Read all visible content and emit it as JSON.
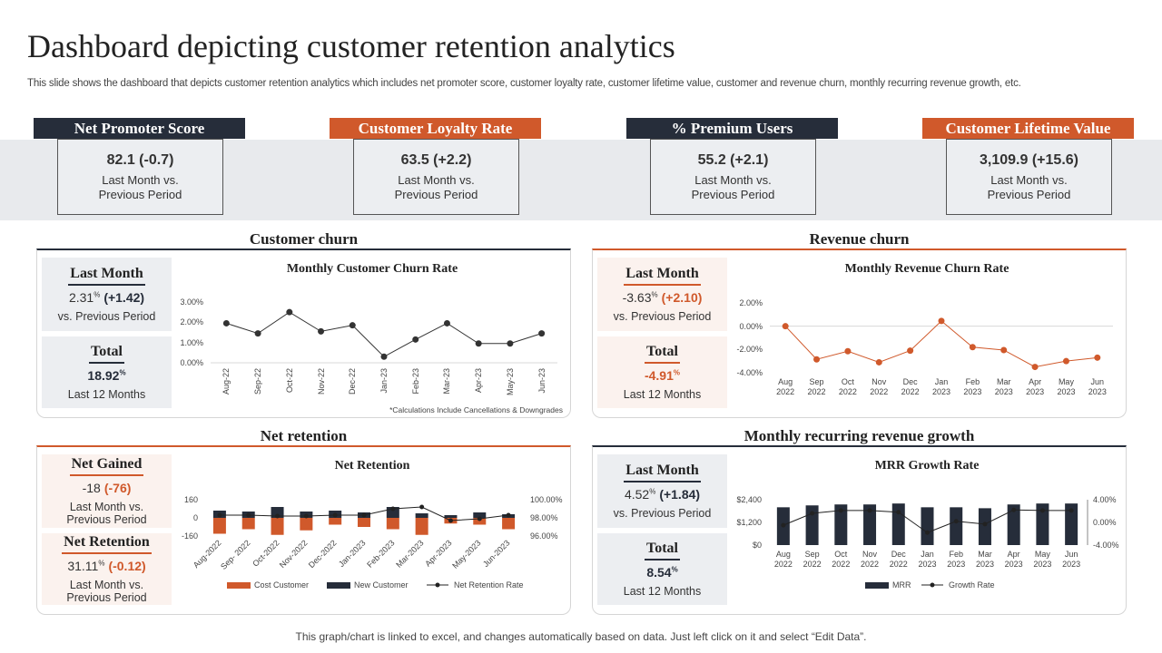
{
  "header": {
    "title": "Dashboard depicting customer retention analytics",
    "subtitle": "This slide shows the dashboard that depicts customer retention analytics which includes net promoter score, customer loyalty rate,  customer lifetime value, customer and revenue churn, monthly recurring revenue growth, etc."
  },
  "kpis": [
    {
      "title": "Net Promoter Score",
      "value": "82.1 (-0.7)",
      "note": "Last Month vs. Previous Period"
    },
    {
      "title": "Customer Loyalty Rate",
      "value": "63.5 (+2.2)",
      "note": "Last Month vs. Previous Period"
    },
    {
      "title": "% Premium Users",
      "value": "55.2 (+2.1)",
      "note": "Last Month vs. Previous Period"
    },
    {
      "title": "Customer Lifetime Value",
      "value": "3,109.9 (+15.6)",
      "note": "Last Month vs. Previous Period"
    }
  ],
  "panels": [
    {
      "title": "Customer churn",
      "boxes": [
        {
          "heading": "Last Month",
          "value": "2.31",
          "unit": "%",
          "change": "(+1.42)",
          "note": "vs. Previous Period"
        },
        {
          "heading": "Total",
          "value": "18.92",
          "unit": "%",
          "note": "Last 12 Months"
        }
      ]
    },
    {
      "title": "Revenue churn",
      "boxes": [
        {
          "heading": "Last Month",
          "value": "-3.63",
          "unit": "%",
          "change": "(+2.10)",
          "note": "vs. Previous Period"
        },
        {
          "heading": "Total",
          "value": "-4.91",
          "unit": "%",
          "note": "Last 12 Months"
        }
      ]
    },
    {
      "title": "Net retention",
      "boxes": [
        {
          "heading": "Net Gained",
          "value": "-18",
          "change": "(-76)",
          "note": "Last Month vs. Previous Period"
        },
        {
          "heading": "Net Retention",
          "value": "31.11",
          "unit": "%",
          "change": "(-0.12)",
          "note": "Last Month vs. Previous Period"
        }
      ]
    },
    {
      "title": "Monthly recurring revenue growth",
      "boxes": [
        {
          "heading": "Last Month",
          "value": "4.52",
          "unit": "%",
          "change": "(+1.84)",
          "note": "vs. Previous Period"
        },
        {
          "heading": "Total",
          "value": "8.54",
          "unit": "%",
          "note": "Last 12 Months"
        }
      ]
    }
  ],
  "chart_data": [
    {
      "type": "line",
      "title": "Monthly Customer Churn Rate",
      "note": "*Calculations Include Cancellations & Downgrades",
      "categories": [
        "Aug-22",
        "Sep-22",
        "Oct-22",
        "Nov-22",
        "Dec-22",
        "Jan-23",
        "Feb-23",
        "Mar-23",
        "Apr-23",
        "May-23",
        "Jun-23"
      ],
      "values": [
        1.95,
        1.45,
        2.5,
        1.55,
        1.85,
        0.3,
        1.15,
        1.95,
        0.95,
        0.95,
        1.45
      ],
      "color": "#333333",
      "ylim": [
        0,
        3
      ],
      "yticks": [
        {
          "value": 0,
          "label": "0.00%"
        },
        {
          "value": 1,
          "label": "1.00%"
        },
        {
          "value": 2,
          "label": "2.00%"
        },
        {
          "value": 3,
          "label": "3.00%"
        }
      ]
    },
    {
      "type": "line",
      "title": "Monthly Revenue Churn Rate",
      "categories": [
        "Aug 2022",
        "Sep 2022",
        "Oct 2022",
        "Nov 2022",
        "Dec 2022",
        "Jan 2023",
        "Feb 2023",
        "Mar 2023",
        "Apr 2023",
        "May 2023",
        "Jun 2023"
      ],
      "values": [
        0.0,
        -2.85,
        -2.15,
        -3.1,
        -2.1,
        0.45,
        -1.8,
        -2.05,
        -3.5,
        -3.0,
        -2.7
      ],
      "color": "#d0592b",
      "ylim": [
        -4,
        2
      ],
      "yticks": [
        {
          "value": 2,
          "label": "2.00%"
        },
        {
          "value": 0,
          "label": "0.00%"
        },
        {
          "value": -2,
          "label": "-2.00%"
        },
        {
          "value": -4,
          "label": "-4.00%"
        }
      ]
    },
    {
      "type": "combo",
      "title": "Net Retention",
      "categories": [
        "Aug-2022",
        "Sep- 2022",
        "Oct-2022",
        "Nov-2022",
        "Dec-2022",
        "Jan-2023",
        "Feb-2023",
        "Mar-2023",
        "Apr-2023",
        "May-2023",
        "Jun-2023"
      ],
      "series": [
        {
          "name": "Cost Customer",
          "type": "bar",
          "color": "#d0592b",
          "values": [
            -140,
            -100,
            -150,
            -110,
            -60,
            -80,
            -100,
            -150,
            -50,
            -60,
            -100
          ]
        },
        {
          "name": "New Customer",
          "type": "bar",
          "color": "#262d3a",
          "values": [
            64,
            56,
            96,
            56,
            64,
            48,
            96,
            40,
            24,
            48,
            32
          ]
        },
        {
          "name": "Net Retention Rate",
          "type": "line",
          "axis": "y2",
          "color": "#222222",
          "values": [
            98.3,
            98.3,
            98.2,
            98.2,
            98.3,
            98.3,
            99.0,
            99.2,
            97.7,
            97.9,
            98.3
          ]
        }
      ],
      "ylim": [
        -160,
        160
      ],
      "yticks": [
        160,
        0,
        -160
      ],
      "y2lim": [
        96,
        100
      ],
      "y2ticks": [
        {
          "value": 100,
          "label": "100.00%"
        },
        {
          "value": 98,
          "label": "98.00%"
        },
        {
          "value": 96,
          "label": "96.00%"
        }
      ],
      "legend": "bottom"
    },
    {
      "type": "combo",
      "title": "MRR Growth Rate",
      "categories": [
        "Aug 2022",
        "Sep 2022",
        "Oct 2022",
        "Nov 2022",
        "Dec 2022",
        "Jan 2023",
        "Feb 2023",
        "Mar 2023",
        "Apr 2023",
        "May 2023",
        "Jun 2023"
      ],
      "series": [
        {
          "name": "MRR",
          "type": "bar",
          "color": "#262d3a",
          "values": [
            2000,
            2100,
            2150,
            2150,
            2200,
            2000,
            2000,
            1950,
            2150,
            2200,
            2200
          ]
        },
        {
          "name": "Growth Rate",
          "type": "line",
          "axis": "y2",
          "color": "#222222",
          "values": [
            -0.5,
            1.6,
            2.1,
            2.1,
            1.8,
            -1.8,
            0.2,
            -0.3,
            2.2,
            2.1,
            2.1
          ]
        }
      ],
      "ylim": [
        0,
        2400
      ],
      "yticks": [
        {
          "value": 0,
          "label": "$0"
        },
        {
          "value": 1200,
          "label": "$1,200"
        },
        {
          "value": 2400,
          "label": "$2,400"
        }
      ],
      "y2lim": [
        -4,
        4
      ],
      "y2ticks": [
        {
          "value": 4,
          "label": "4.00%"
        },
        {
          "value": 0,
          "label": "0.00%"
        },
        {
          "value": -4,
          "label": "-4.00%"
        }
      ],
      "legend": "bottom"
    }
  ],
  "footer": "This graph/chart is linked to excel,  and changes automatically based on data. Just left click on it and select “Edit Data”."
}
